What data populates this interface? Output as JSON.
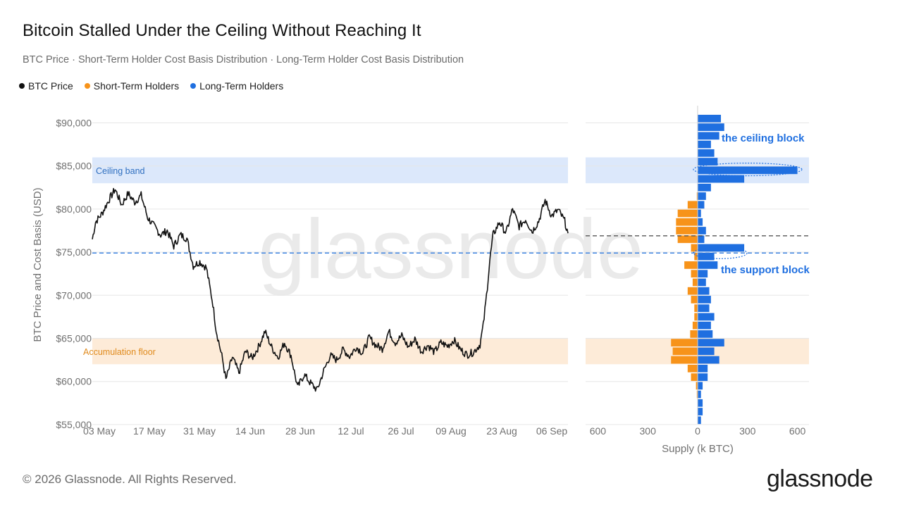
{
  "title": "Bitcoin Stalled Under the Ceiling Without Reaching It",
  "subtitle": "BTC Price · Short-Term Holder Cost Basis Distribution · Long-Term Holder Cost Basis Distribution",
  "legend": [
    {
      "label": "BTC Price",
      "color": "#111111"
    },
    {
      "label": "Short-Term Holders",
      "color": "#f7931a"
    },
    {
      "label": "Long-Term Holders",
      "color": "#1f6fe0"
    }
  ],
  "footer": "© 2026 Glassnode. All Rights Reserved.",
  "logo": "glassnode",
  "watermark": "glassnode",
  "chart_data": {
    "type": "line",
    "ylabel": "BTC Price and Cost Basis (USD)",
    "xlabel_right": "Supply (k BTC)",
    "ylim": [
      55000,
      90000
    ],
    "y_ticks": [
      {
        "value": 90000,
        "label": "$90,000"
      },
      {
        "value": 85000,
        "label": "$85,000"
      },
      {
        "value": 80000,
        "label": "$80,000"
      },
      {
        "value": 75000,
        "label": "$75,000"
      },
      {
        "value": 70000,
        "label": "$70,000"
      },
      {
        "value": 65000,
        "label": "$65,000"
      },
      {
        "value": 60000,
        "label": "$60,000"
      },
      {
        "value": 55000,
        "label": "$55,000"
      }
    ],
    "x_ticks": [
      "03 May",
      "17 May",
      "31 May",
      "14 Jun",
      "28 Jun",
      "12 Jul",
      "26 Jul",
      "09 Aug",
      "23 Aug",
      "06 Sep"
    ],
    "supply_ticks": [
      {
        "value": -600,
        "label": "600"
      },
      {
        "value": -300,
        "label": "300"
      },
      {
        "value": 0,
        "label": "0"
      },
      {
        "value": 300,
        "label": "300"
      },
      {
        "value": 600,
        "label": "600"
      }
    ],
    "bands": [
      {
        "label": "Ceiling band",
        "from": 83000,
        "to": 86000,
        "color": "#dce8fb",
        "text_color": "#2f6fbf"
      },
      {
        "label": "Accumulation floor",
        "from": 62000,
        "to": 65000,
        "color": "#fdebd8",
        "text_color": "#e08a1c"
      }
    ],
    "reference_lines": [
      {
        "name": "support",
        "value": 74900,
        "color": "#2f7be0",
        "span": "all"
      },
      {
        "name": "current",
        "value": 76900,
        "color": "#444444",
        "span": "right"
      }
    ],
    "annotations": [
      {
        "text": "the ceiling block",
        "price": 84600,
        "color": "#1f6fe0"
      },
      {
        "text": "the support block",
        "price": 74900,
        "color": "#1f6fe0"
      }
    ],
    "series": [
      {
        "name": "BTC Price",
        "color": "#111111",
        "anchors": [
          {
            "day": 0,
            "price": 76500
          },
          {
            "day": 1,
            "price": 78500
          },
          {
            "day": 3,
            "price": 79500
          },
          {
            "day": 5,
            "price": 81000
          },
          {
            "day": 7,
            "price": 82300
          },
          {
            "day": 9,
            "price": 80500
          },
          {
            "day": 11,
            "price": 81800
          },
          {
            "day": 13,
            "price": 80800
          },
          {
            "day": 15,
            "price": 81600
          },
          {
            "day": 17,
            "price": 79000
          },
          {
            "day": 19,
            "price": 78000
          },
          {
            "day": 21,
            "price": 77000
          },
          {
            "day": 23,
            "price": 77500
          },
          {
            "day": 25,
            "price": 75700
          },
          {
            "day": 27,
            "price": 77000
          },
          {
            "day": 29,
            "price": 76600
          },
          {
            "day": 31,
            "price": 73400
          },
          {
            "day": 33,
            "price": 73900
          },
          {
            "day": 35,
            "price": 73200
          },
          {
            "day": 37,
            "price": 69000
          },
          {
            "day": 38,
            "price": 66000
          },
          {
            "day": 40,
            "price": 62500
          },
          {
            "day": 41,
            "price": 60200
          },
          {
            "day": 43,
            "price": 62800
          },
          {
            "day": 45,
            "price": 61000
          },
          {
            "day": 47,
            "price": 63500
          },
          {
            "day": 49,
            "price": 62700
          },
          {
            "day": 51,
            "price": 64000
          },
          {
            "day": 53,
            "price": 65800
          },
          {
            "day": 55,
            "price": 64000
          },
          {
            "day": 57,
            "price": 62800
          },
          {
            "day": 59,
            "price": 64500
          },
          {
            "day": 61,
            "price": 63000
          },
          {
            "day": 63,
            "price": 59300
          },
          {
            "day": 65,
            "price": 60800
          },
          {
            "day": 67,
            "price": 59800
          },
          {
            "day": 69,
            "price": 59000
          },
          {
            "day": 71,
            "price": 61200
          },
          {
            "day": 73,
            "price": 63000
          },
          {
            "day": 75,
            "price": 62500
          },
          {
            "day": 77,
            "price": 63700
          },
          {
            "day": 79,
            "price": 62900
          },
          {
            "day": 81,
            "price": 64000
          },
          {
            "day": 83,
            "price": 63300
          },
          {
            "day": 85,
            "price": 65100
          },
          {
            "day": 87,
            "price": 64200
          },
          {
            "day": 89,
            "price": 63800
          },
          {
            "day": 91,
            "price": 65800
          },
          {
            "day": 93,
            "price": 64500
          },
          {
            "day": 95,
            "price": 65300
          },
          {
            "day": 97,
            "price": 64000
          },
          {
            "day": 99,
            "price": 64900
          },
          {
            "day": 101,
            "price": 63500
          },
          {
            "day": 103,
            "price": 64200
          },
          {
            "day": 105,
            "price": 63400
          },
          {
            "day": 107,
            "price": 64500
          },
          {
            "day": 109,
            "price": 64100
          },
          {
            "day": 111,
            "price": 64800
          },
          {
            "day": 113,
            "price": 63700
          },
          {
            "day": 115,
            "price": 63100
          },
          {
            "day": 117,
            "price": 63400
          },
          {
            "day": 119,
            "price": 64300
          },
          {
            "day": 120,
            "price": 66500
          },
          {
            "day": 121,
            "price": 70000
          },
          {
            "day": 122,
            "price": 74000
          },
          {
            "day": 123,
            "price": 77000
          },
          {
            "day": 125,
            "price": 78500
          },
          {
            "day": 127,
            "price": 77200
          },
          {
            "day": 129,
            "price": 80000
          },
          {
            "day": 131,
            "price": 78000
          },
          {
            "day": 133,
            "price": 78800
          },
          {
            "day": 135,
            "price": 77400
          },
          {
            "day": 137,
            "price": 78600
          },
          {
            "day": 139,
            "price": 81000
          },
          {
            "day": 141,
            "price": 79200
          },
          {
            "day": 143,
            "price": 79900
          },
          {
            "day": 145,
            "price": 78600
          },
          {
            "day": 146,
            "price": 77200
          }
        ]
      }
    ],
    "distribution_bins_price": [
      90500,
      89500,
      88500,
      87500,
      86500,
      85500,
      84500,
      83500,
      82500,
      81500,
      80500,
      79500,
      78500,
      77500,
      76500,
      75500,
      74500,
      73500,
      72500,
      71500,
      70500,
      69500,
      68500,
      67500,
      66500,
      65500,
      64500,
      63500,
      62500,
      61500,
      60500,
      59500,
      58500,
      57500,
      56500,
      55500
    ],
    "short_term_holders": [
      0,
      0,
      0,
      0,
      0,
      0,
      0,
      0,
      0,
      5,
      60,
      120,
      130,
      130,
      120,
      40,
      20,
      80,
      40,
      30,
      60,
      40,
      20,
      20,
      30,
      45,
      160,
      150,
      160,
      60,
      40,
      10,
      5,
      0,
      0,
      0
    ],
    "long_term_holders": [
      140,
      160,
      130,
      80,
      100,
      120,
      600,
      280,
      80,
      50,
      40,
      20,
      30,
      50,
      40,
      280,
      100,
      120,
      60,
      50,
      70,
      80,
      70,
      100,
      80,
      90,
      160,
      100,
      130,
      60,
      60,
      30,
      20,
      30,
      30,
      20
    ]
  }
}
